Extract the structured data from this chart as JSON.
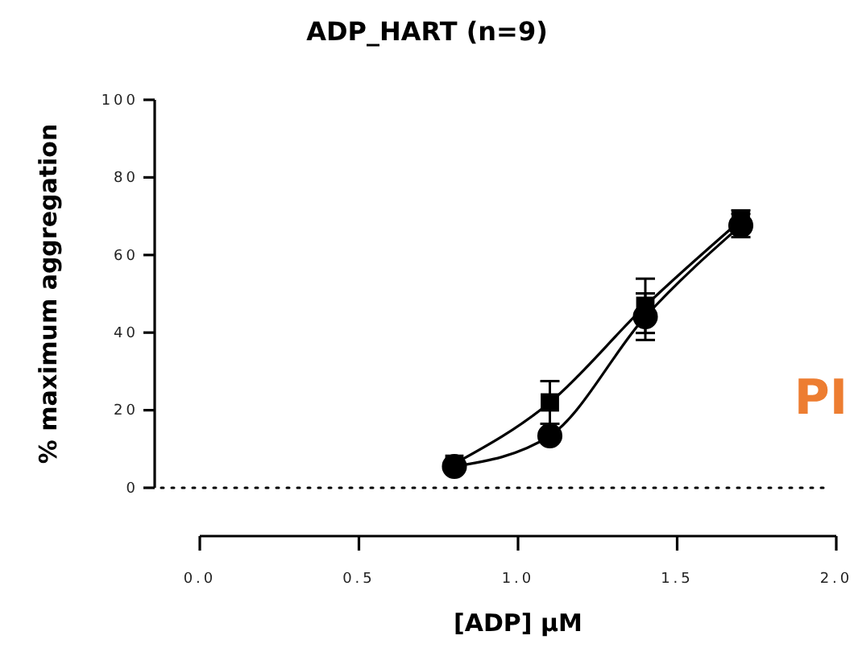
{
  "chart_data": {
    "type": "line",
    "title": "ADP_HART (n=9)",
    "xlabel": "[ADP] µM",
    "ylabel": "% maximum aggregation",
    "x": [
      0.8,
      1.1,
      1.4,
      1.7
    ],
    "xlim": [
      0,
      2
    ],
    "xticks": [
      {
        "value": 0,
        "label": "0.0"
      },
      {
        "value": 0.5,
        "label": "0.5"
      },
      {
        "value": 1,
        "label": "1.0"
      },
      {
        "value": 1.5,
        "label": "1.5"
      },
      {
        "value": 2,
        "label": "2.0"
      }
    ],
    "ylim": [
      0,
      100
    ],
    "yticks": [
      0,
      20,
      40,
      60,
      80,
      100
    ],
    "series": [
      {
        "color": "#000000",
        "marker": "square",
        "values": [
          6.2,
          22,
          46.9,
          69
        ],
        "errors": [
          null,
          5.5,
          7,
          2.5
        ]
      },
      {
        "color": "#000000",
        "marker": "circle",
        "values": [
          5.5,
          13.4,
          44.1,
          67.6
        ],
        "errors": [
          null,
          null,
          6,
          3
        ]
      }
    ],
    "ref_lines": [
      {
        "axis": "y",
        "value": 0,
        "line_style": "dotted"
      }
    ],
    "line_style": "solid",
    "grid": false,
    "annotations": [
      "PI"
    ]
  }
}
